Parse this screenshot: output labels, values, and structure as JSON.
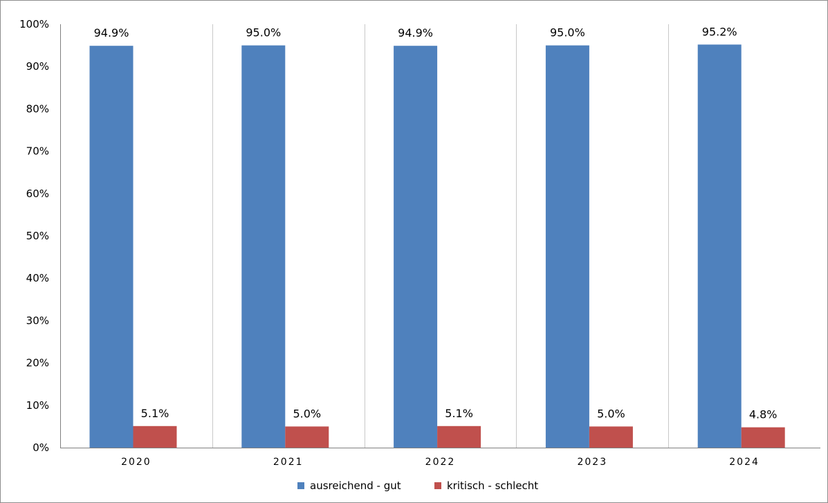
{
  "chart_data": {
    "type": "bar",
    "title": "",
    "xlabel": "",
    "ylabel": "",
    "categories": [
      "2020",
      "2021",
      "2022",
      "2023",
      "2024"
    ],
    "series": [
      {
        "name": "ausreichend - gut",
        "values": [
          94.9,
          95.0,
          94.9,
          95.0,
          95.2
        ],
        "labels": [
          "94.9%",
          "95.0%",
          "94.9%",
          "95.0%",
          "95.2%"
        ],
        "color": "#4F81BD"
      },
      {
        "name": "kritisch - schlecht",
        "values": [
          5.1,
          5.0,
          5.1,
          5.0,
          4.8
        ],
        "labels": [
          "5.1%",
          "5.0%",
          "5.1%",
          "5.0%",
          "4.8%"
        ],
        "color": "#C0504D"
      }
    ],
    "ylim": [
      0,
      100
    ],
    "yticks": [
      "0%",
      "10%",
      "20%",
      "30%",
      "40%",
      "50%",
      "60%",
      "70%",
      "80%",
      "90%",
      "100%"
    ],
    "grid": "vertical separators between categories",
    "legend": "bottom-center"
  }
}
